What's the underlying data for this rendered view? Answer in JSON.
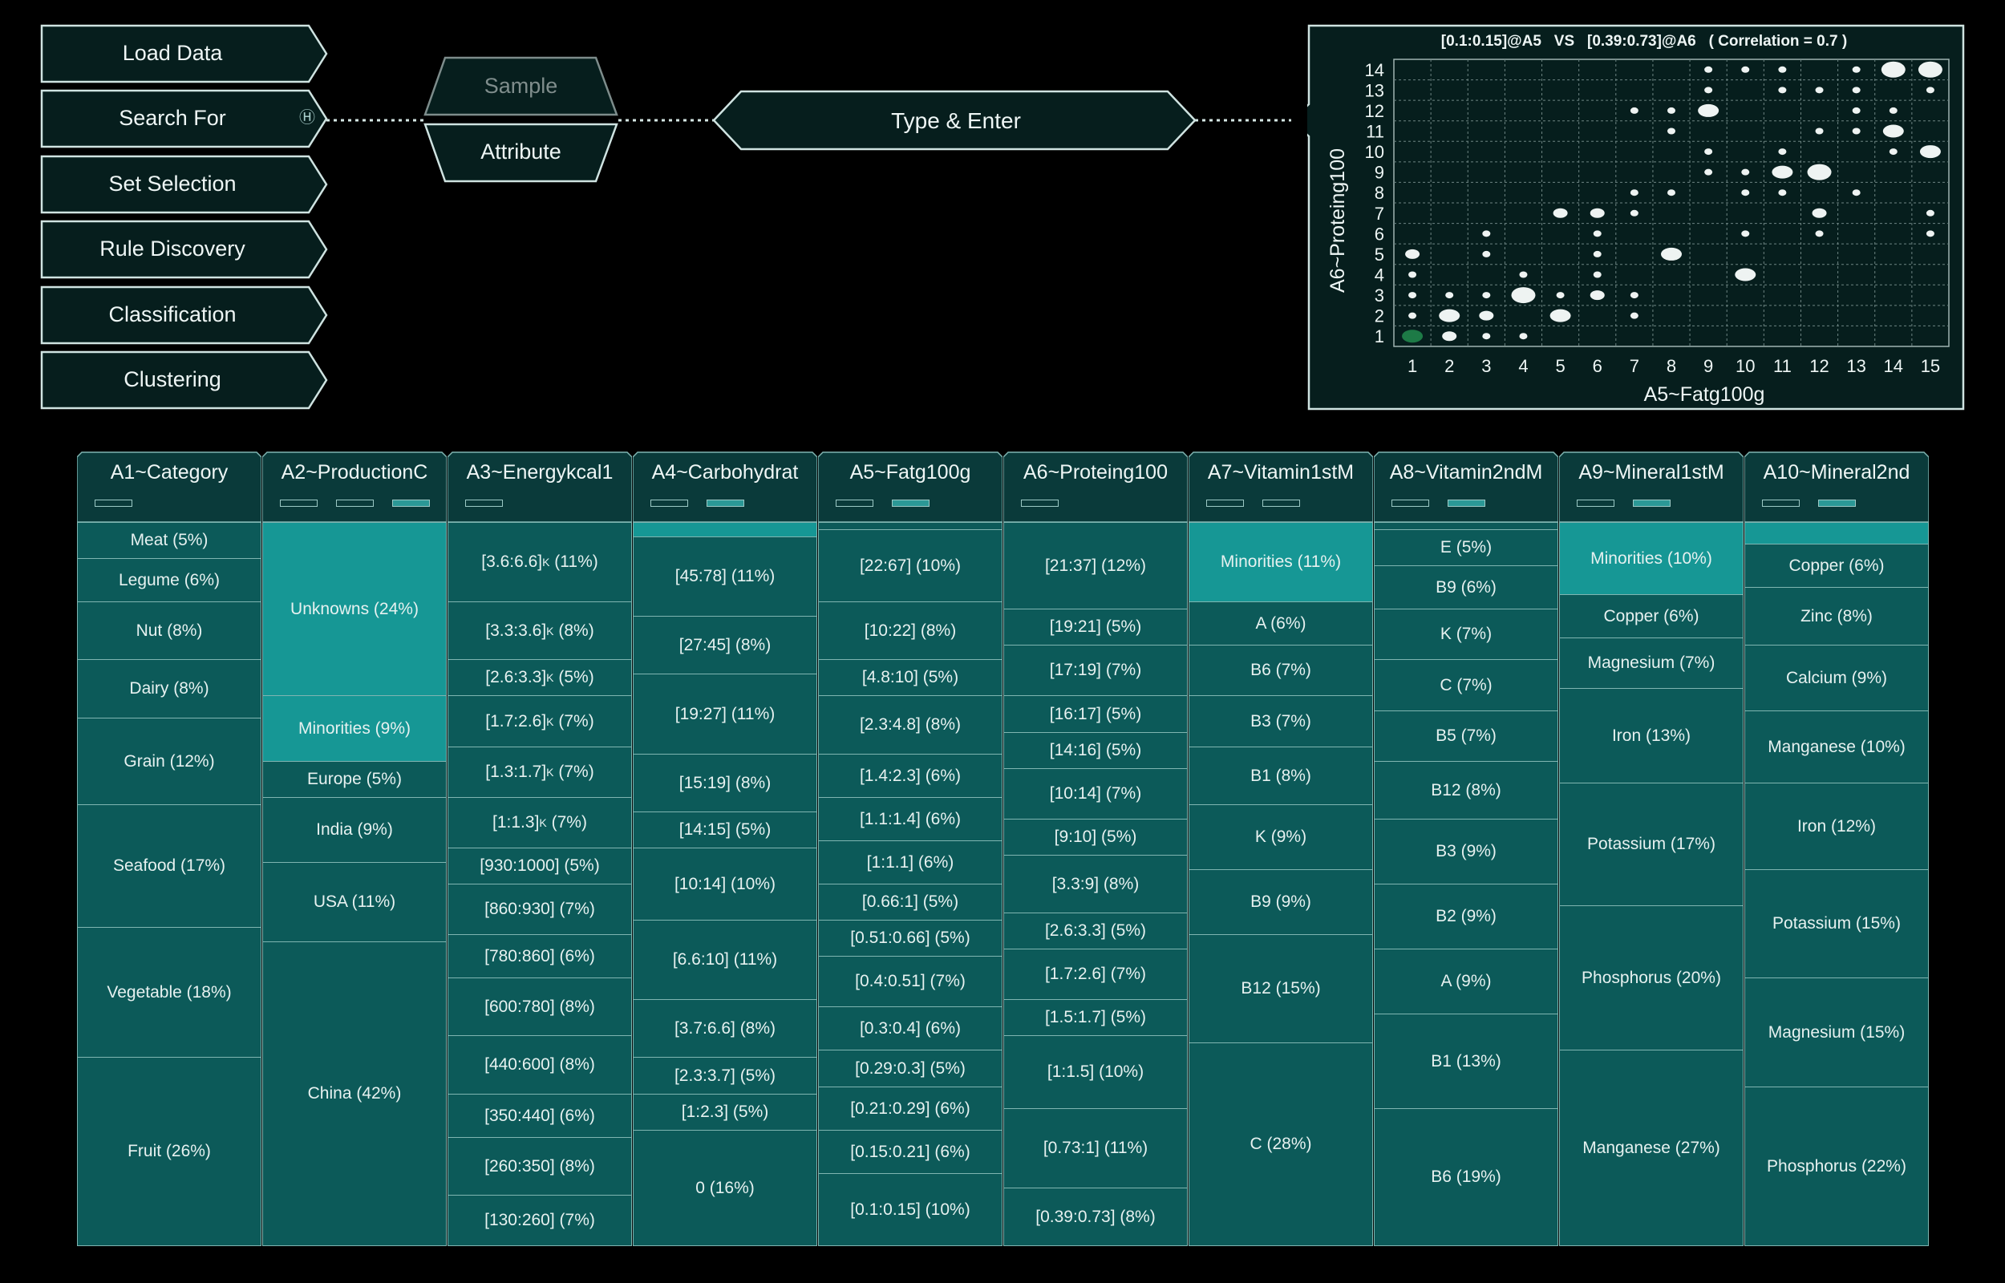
{
  "menu": {
    "items": [
      {
        "label": "Load Data"
      },
      {
        "label": "Search For",
        "hint": "Ⓗ"
      },
      {
        "label": "Set Selection"
      },
      {
        "label": "Rule Discovery"
      },
      {
        "label": "Classification"
      },
      {
        "label": "Clustering"
      }
    ]
  },
  "mode": {
    "sample_label": "Sample",
    "attribute_label": "Attribute"
  },
  "search": {
    "placeholder": "Type & Enter"
  },
  "colors": {
    "panel": "#061e1d",
    "border": "#cfe3e1",
    "cell": "#0c5a59",
    "cell_highlight": "#169795",
    "dot": "#eef3f2",
    "dot_selected": "#1d7a46"
  },
  "chart_data": {
    "type": "scatter",
    "title": "[0.1:0.15]@A5   VS   [0.39:0.73]@A6   ( Correlation = 0.7 )",
    "xlabel": "A5~Fatg100g",
    "ylabel": "A6~Proteing100",
    "xlim": [
      1,
      15
    ],
    "ylim": [
      1,
      14
    ],
    "x_ticks": [
      "1",
      "2",
      "3",
      "4",
      "5",
      "6",
      "7",
      "8",
      "9",
      "10",
      "11",
      "12",
      "13",
      "14",
      "15"
    ],
    "y_ticks": [
      "1",
      "2",
      "3",
      "4",
      "5",
      "6",
      "7",
      "8",
      "9",
      "10",
      "11",
      "12",
      "13",
      "14"
    ],
    "grid": true,
    "selected": {
      "x": 1,
      "y": 1
    },
    "points": [
      {
        "x": 1,
        "y": 1,
        "s": 3
      },
      {
        "x": 2,
        "y": 1,
        "s": 2
      },
      {
        "x": 3,
        "y": 1,
        "s": 1
      },
      {
        "x": 4,
        "y": 1,
        "s": 1
      },
      {
        "x": 1,
        "y": 2,
        "s": 1
      },
      {
        "x": 2,
        "y": 2,
        "s": 3
      },
      {
        "x": 3,
        "y": 2,
        "s": 2
      },
      {
        "x": 5,
        "y": 2,
        "s": 3
      },
      {
        "x": 7,
        "y": 2,
        "s": 1
      },
      {
        "x": 1,
        "y": 3,
        "s": 1
      },
      {
        "x": 2,
        "y": 3,
        "s": 1
      },
      {
        "x": 3,
        "y": 3,
        "s": 1
      },
      {
        "x": 4,
        "y": 3,
        "s": 4
      },
      {
        "x": 5,
        "y": 3,
        "s": 1
      },
      {
        "x": 6,
        "y": 3,
        "s": 2
      },
      {
        "x": 7,
        "y": 3,
        "s": 1
      },
      {
        "x": 1,
        "y": 4,
        "s": 1
      },
      {
        "x": 4,
        "y": 4,
        "s": 1
      },
      {
        "x": 6,
        "y": 4,
        "s": 1
      },
      {
        "x": 10,
        "y": 4,
        "s": 3
      },
      {
        "x": 1,
        "y": 5,
        "s": 2
      },
      {
        "x": 3,
        "y": 5,
        "s": 1
      },
      {
        "x": 6,
        "y": 5,
        "s": 1
      },
      {
        "x": 8,
        "y": 5,
        "s": 3
      },
      {
        "x": 3,
        "y": 6,
        "s": 1
      },
      {
        "x": 6,
        "y": 6,
        "s": 1
      },
      {
        "x": 10,
        "y": 6,
        "s": 1
      },
      {
        "x": 12,
        "y": 6,
        "s": 1
      },
      {
        "x": 15,
        "y": 6,
        "s": 1
      },
      {
        "x": 5,
        "y": 7,
        "s": 2
      },
      {
        "x": 6,
        "y": 7,
        "s": 2
      },
      {
        "x": 7,
        "y": 7,
        "s": 1
      },
      {
        "x": 12,
        "y": 7,
        "s": 2
      },
      {
        "x": 15,
        "y": 7,
        "s": 1
      },
      {
        "x": 7,
        "y": 8,
        "s": 1
      },
      {
        "x": 8,
        "y": 8,
        "s": 1
      },
      {
        "x": 10,
        "y": 8,
        "s": 1
      },
      {
        "x": 11,
        "y": 8,
        "s": 1
      },
      {
        "x": 13,
        "y": 8,
        "s": 1
      },
      {
        "x": 9,
        "y": 9,
        "s": 1
      },
      {
        "x": 10,
        "y": 9,
        "s": 1
      },
      {
        "x": 11,
        "y": 9,
        "s": 3
      },
      {
        "x": 12,
        "y": 9,
        "s": 4
      },
      {
        "x": 9,
        "y": 10,
        "s": 1
      },
      {
        "x": 11,
        "y": 10,
        "s": 1
      },
      {
        "x": 14,
        "y": 10,
        "s": 1
      },
      {
        "x": 15,
        "y": 10,
        "s": 3
      },
      {
        "x": 8,
        "y": 11,
        "s": 1
      },
      {
        "x": 12,
        "y": 11,
        "s": 1
      },
      {
        "x": 13,
        "y": 11,
        "s": 1
      },
      {
        "x": 14,
        "y": 11,
        "s": 3
      },
      {
        "x": 7,
        "y": 12,
        "s": 1
      },
      {
        "x": 8,
        "y": 12,
        "s": 1
      },
      {
        "x": 9,
        "y": 12,
        "s": 3
      },
      {
        "x": 13,
        "y": 12,
        "s": 1
      },
      {
        "x": 14,
        "y": 12,
        "s": 1
      },
      {
        "x": 9,
        "y": 13,
        "s": 1
      },
      {
        "x": 11,
        "y": 13,
        "s": 1
      },
      {
        "x": 12,
        "y": 13,
        "s": 1
      },
      {
        "x": 13,
        "y": 13,
        "s": 1
      },
      {
        "x": 15,
        "y": 13,
        "s": 1
      },
      {
        "x": 9,
        "y": 14,
        "s": 1
      },
      {
        "x": 10,
        "y": 14,
        "s": 1
      },
      {
        "x": 11,
        "y": 14,
        "s": 1
      },
      {
        "x": 13,
        "y": 14,
        "s": 1
      },
      {
        "x": 14,
        "y": 14,
        "s": 4
      },
      {
        "x": 15,
        "y": 14,
        "s": 4
      }
    ]
  },
  "columns": [
    {
      "name": "A1~Category",
      "indicators": [
        false
      ],
      "cells": [
        {
          "label": "Meat (5%)",
          "pct": 5
        },
        {
          "label": "Legume (6%)",
          "pct": 6
        },
        {
          "label": "Nut (8%)",
          "pct": 8
        },
        {
          "label": "Dairy (8%)",
          "pct": 8
        },
        {
          "label": "Grain (12%)",
          "pct": 12
        },
        {
          "label": "Seafood (17%)",
          "pct": 17
        },
        {
          "label": "Vegetable (18%)",
          "pct": 18
        },
        {
          "label": "Fruit (26%)",
          "pct": 26
        }
      ]
    },
    {
      "name": "A2~ProductionC",
      "indicators": [
        false,
        false,
        true
      ],
      "cells": [
        {
          "label": "Unknowns (24%)",
          "pct": 24,
          "hl": true
        },
        {
          "label": "Minorities (9%)",
          "pct": 9,
          "hl": true
        },
        {
          "label": "Europe (5%)",
          "pct": 5
        },
        {
          "label": "India (9%)",
          "pct": 9
        },
        {
          "label": "USA (11%)",
          "pct": 11
        },
        {
          "label": "China (42%)",
          "pct": 42
        }
      ]
    },
    {
      "name": "A3~Energykcal1",
      "indicators": [
        false
      ],
      "cells": [
        {
          "label": "[3.6:6.6]",
          "sup": "K",
          "suffix": " (11%)",
          "pct": 11
        },
        {
          "label": "[3.3:3.6]",
          "sup": "K",
          "suffix": " (8%)",
          "pct": 8
        },
        {
          "label": "[2.6:3.3]",
          "sup": "K",
          "suffix": " (5%)",
          "pct": 5
        },
        {
          "label": "[1.7:2.6]",
          "sup": "K",
          "suffix": " (7%)",
          "pct": 7
        },
        {
          "label": "[1.3:1.7]",
          "sup": "K",
          "suffix": " (7%)",
          "pct": 7
        },
        {
          "label": "[1:1.3]",
          "sup": "K",
          "suffix": " (7%)",
          "pct": 7
        },
        {
          "label": "[930:1000] (5%)",
          "pct": 5
        },
        {
          "label": "[860:930] (7%)",
          "pct": 7
        },
        {
          "label": "[780:860] (6%)",
          "pct": 6
        },
        {
          "label": "[600:780] (8%)",
          "pct": 8
        },
        {
          "label": "[440:600] (8%)",
          "pct": 8
        },
        {
          "label": "[350:440] (6%)",
          "pct": 6
        },
        {
          "label": "[260:350] (8%)",
          "pct": 8
        },
        {
          "label": "[130:260] (7%)",
          "pct": 7
        }
      ]
    },
    {
      "name": "A4~Carbohydrat",
      "indicators": [
        false,
        true
      ],
      "cells": [
        {
          "label": "",
          "pct": 2,
          "hl": true
        },
        {
          "label": "[45:78] (11%)",
          "pct": 11
        },
        {
          "label": "[27:45] (8%)",
          "pct": 8
        },
        {
          "label": "[19:27] (11%)",
          "pct": 11
        },
        {
          "label": "[15:19] (8%)",
          "pct": 8
        },
        {
          "label": "[14:15] (5%)",
          "pct": 5
        },
        {
          "label": "[10:14] (10%)",
          "pct": 10
        },
        {
          "label": "[6.6:10] (11%)",
          "pct": 11
        },
        {
          "label": "[3.7:6.6] (8%)",
          "pct": 8
        },
        {
          "label": "[2.3:3.7] (5%)",
          "pct": 5
        },
        {
          "label": "[1:2.3] (5%)",
          "pct": 5
        },
        {
          "label": "0 (16%)",
          "pct": 16
        }
      ]
    },
    {
      "name": "A5~Fatg100g",
      "indicators": [
        false,
        true
      ],
      "cells": [
        {
          "label": "",
          "pct": 1
        },
        {
          "label": "[22:67] (10%)",
          "pct": 10
        },
        {
          "label": "[10:22] (8%)",
          "pct": 8
        },
        {
          "label": "[4.8:10] (5%)",
          "pct": 5
        },
        {
          "label": "[2.3:4.8] (8%)",
          "pct": 8
        },
        {
          "label": "[1.4:2.3] (6%)",
          "pct": 6
        },
        {
          "label": "[1.1:1.4] (6%)",
          "pct": 6
        },
        {
          "label": "[1:1.1] (6%)",
          "pct": 6
        },
        {
          "label": "[0.66:1] (5%)",
          "pct": 5
        },
        {
          "label": "[0.51:0.66] (5%)",
          "pct": 5
        },
        {
          "label": "[0.4:0.51] (7%)",
          "pct": 7
        },
        {
          "label": "[0.3:0.4] (6%)",
          "pct": 6
        },
        {
          "label": "[0.29:0.3] (5%)",
          "pct": 5
        },
        {
          "label": "[0.21:0.29] (6%)",
          "pct": 6
        },
        {
          "label": "[0.15:0.21] (6%)",
          "pct": 6
        },
        {
          "label": "[0.1:0.15] (10%)",
          "pct": 10
        }
      ]
    },
    {
      "name": "A6~Proteing100",
      "indicators": [
        false
      ],
      "cells": [
        {
          "label": "[21:37] (12%)",
          "pct": 12
        },
        {
          "label": "[19:21] (5%)",
          "pct": 5
        },
        {
          "label": "[17:19] (7%)",
          "pct": 7
        },
        {
          "label": "[16:17] (5%)",
          "pct": 5
        },
        {
          "label": "[14:16] (5%)",
          "pct": 5
        },
        {
          "label": "[10:14] (7%)",
          "pct": 7
        },
        {
          "label": "[9:10] (5%)",
          "pct": 5
        },
        {
          "label": "[3.3:9] (8%)",
          "pct": 8
        },
        {
          "label": "[2.6:3.3] (5%)",
          "pct": 5
        },
        {
          "label": "[1.7:2.6] (7%)",
          "pct": 7
        },
        {
          "label": "[1.5:1.7] (5%)",
          "pct": 5
        },
        {
          "label": "[1:1.5] (10%)",
          "pct": 10
        },
        {
          "label": "[0.73:1] (11%)",
          "pct": 11
        },
        {
          "label": "[0.39:0.73] (8%)",
          "pct": 8
        }
      ]
    },
    {
      "name": "A7~Vitamin1stM",
      "indicators": [
        false,
        false
      ],
      "cells": [
        {
          "label": "Minorities (11%)",
          "pct": 11,
          "hl": true
        },
        {
          "label": "A (6%)",
          "pct": 6
        },
        {
          "label": "B6 (7%)",
          "pct": 7
        },
        {
          "label": "B3 (7%)",
          "pct": 7
        },
        {
          "label": "B1 (8%)",
          "pct": 8
        },
        {
          "label": "K (9%)",
          "pct": 9
        },
        {
          "label": "B9 (9%)",
          "pct": 9
        },
        {
          "label": "B12 (15%)",
          "pct": 15
        },
        {
          "label": "C (28%)",
          "pct": 28
        }
      ]
    },
    {
      "name": "A8~Vitamin2ndM",
      "indicators": [
        false,
        true
      ],
      "cells": [
        {
          "label": "",
          "pct": 1
        },
        {
          "label": "E (5%)",
          "pct": 5
        },
        {
          "label": "B9 (6%)",
          "pct": 6
        },
        {
          "label": "K (7%)",
          "pct": 7
        },
        {
          "label": "C (7%)",
          "pct": 7
        },
        {
          "label": "B5 (7%)",
          "pct": 7
        },
        {
          "label": "B12 (8%)",
          "pct": 8
        },
        {
          "label": "B3 (9%)",
          "pct": 9
        },
        {
          "label": "B2 (9%)",
          "pct": 9
        },
        {
          "label": "A (9%)",
          "pct": 9
        },
        {
          "label": "B1 (13%)",
          "pct": 13
        },
        {
          "label": "B6 (19%)",
          "pct": 19
        }
      ]
    },
    {
      "name": "A9~Mineral1stM",
      "indicators": [
        false,
        true
      ],
      "cells": [
        {
          "label": "Minorities (10%)",
          "pct": 10,
          "hl": true
        },
        {
          "label": "Copper (6%)",
          "pct": 6
        },
        {
          "label": "Magnesium (7%)",
          "pct": 7
        },
        {
          "label": "Iron (13%)",
          "pct": 13
        },
        {
          "label": "Potassium (17%)",
          "pct": 17
        },
        {
          "label": "Phosphorus (20%)",
          "pct": 20
        },
        {
          "label": "Manganese (27%)",
          "pct": 27
        }
      ]
    },
    {
      "name": "A10~Mineral2nd",
      "indicators": [
        false,
        true
      ],
      "cells": [
        {
          "label": "",
          "pct": 3,
          "hl": true
        },
        {
          "label": "Copper (6%)",
          "pct": 6
        },
        {
          "label": "Zinc (8%)",
          "pct": 8
        },
        {
          "label": "Calcium (9%)",
          "pct": 9
        },
        {
          "label": "Manganese (10%)",
          "pct": 10
        },
        {
          "label": "Iron (12%)",
          "pct": 12
        },
        {
          "label": "Potassium (15%)",
          "pct": 15
        },
        {
          "label": "Magnesium (15%)",
          "pct": 15
        },
        {
          "label": "Phosphorus (22%)",
          "pct": 22
        }
      ]
    }
  ]
}
